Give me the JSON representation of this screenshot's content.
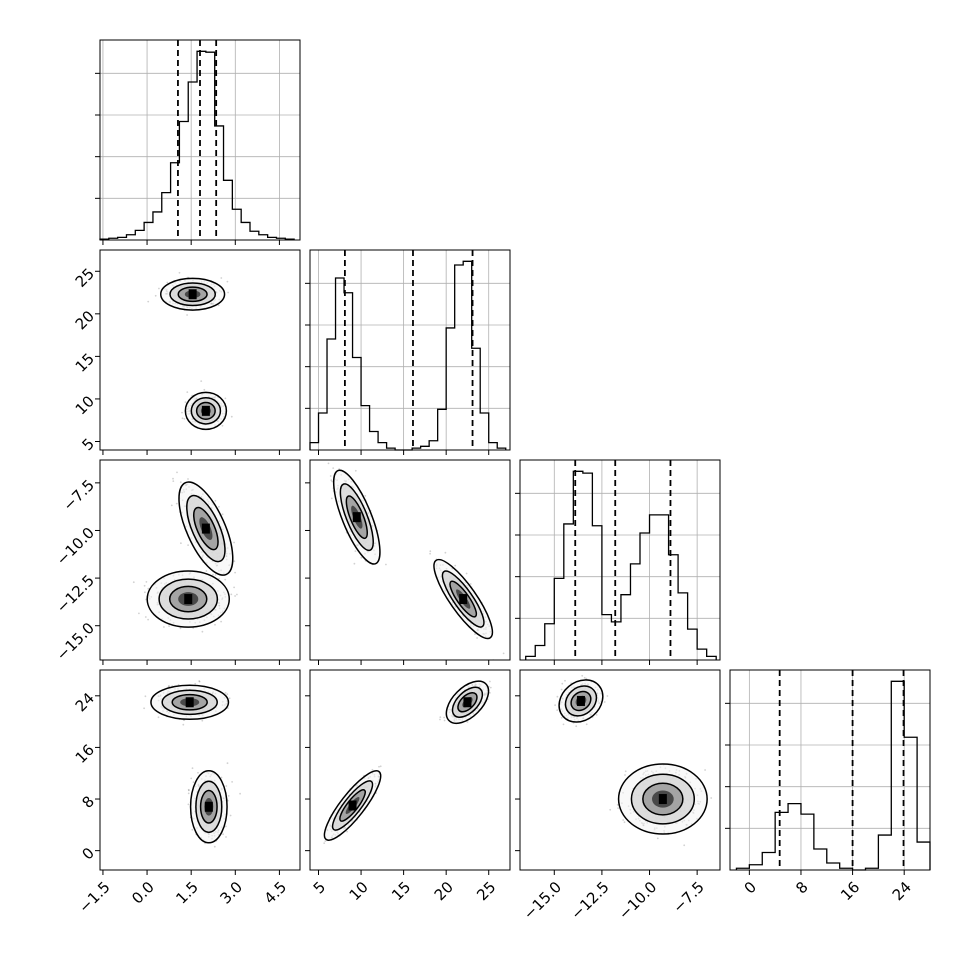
{
  "chart_data": {
    "type": "corner",
    "n_params": 4,
    "grid": true,
    "parameters": [
      {
        "range": [
          -1.6,
          5.2
        ],
        "ticks": [
          -1.5,
          0.0,
          1.5,
          3.0,
          4.5
        ],
        "tick_labels": [
          "−1.5",
          "0.0",
          "1.5",
          "3.0",
          "4.5"
        ],
        "quantiles": [
          1.05,
          1.8,
          2.35
        ]
      },
      {
        "range": [
          4.0,
          27.5
        ],
        "ticks": [
          5,
          10,
          15,
          20,
          25
        ],
        "tick_labels": [
          "5",
          "10",
          "15",
          "20",
          "25"
        ],
        "quantiles": [
          8.1,
          16.1,
          23.1
        ]
      },
      {
        "range": [
          -16.8,
          -6.3
        ],
        "ticks": [
          -15.0,
          -12.5,
          -10.0,
          -7.5
        ],
        "tick_labels": [
          "−15.0",
          "−12.5",
          "−10.0",
          "−7.5"
        ],
        "quantiles": [
          -13.9,
          -11.8,
          -8.9
        ]
      },
      {
        "range": [
          -3.0,
          28.0
        ],
        "ticks": [
          0,
          8,
          16,
          24
        ],
        "tick_labels": [
          "0",
          "8",
          "16",
          "24"
        ],
        "quantiles": [
          4.7,
          16.0,
          23.9
        ]
      }
    ],
    "histograms": [
      {
        "param": 0,
        "edges": [
          -1.6,
          -1.3,
          -1.0,
          -0.7,
          -0.4,
          -0.1,
          0.2,
          0.5,
          0.8,
          1.1,
          1.4,
          1.7,
          2.0,
          2.3,
          2.6,
          2.9,
          3.2,
          3.5,
          3.8,
          4.1,
          4.4,
          4.7,
          5.0
        ],
        "counts": [
          1,
          2,
          3,
          6,
          11,
          20,
          32,
          54,
          88,
          135,
          180,
          215,
          214,
          130,
          68,
          35,
          20,
          10,
          6,
          3,
          2,
          1
        ]
      },
      {
        "param": 1,
        "edges": [
          4.0,
          5.0,
          6.0,
          7.0,
          8.0,
          9.0,
          10.0,
          11.0,
          12.0,
          13.0,
          14.0,
          15.0,
          16.0,
          17.0,
          18.0,
          19.0,
          20.0,
          21.0,
          22.0,
          23.0,
          24.0,
          25.0,
          26.0,
          27.0
        ],
        "counts": [
          4,
          20,
          60,
          93,
          85,
          50,
          24,
          10,
          4,
          1,
          0,
          0,
          1,
          2,
          5,
          22,
          66,
          100,
          102,
          55,
          20,
          4,
          1
        ]
      },
      {
        "param": 2,
        "edges": [
          -16.5,
          -16.0,
          -15.5,
          -15.0,
          -14.5,
          -14.0,
          -13.5,
          -13.0,
          -12.5,
          -12.0,
          -11.5,
          -11.0,
          -10.5,
          -10.0,
          -9.5,
          -9.0,
          -8.5,
          -8.0,
          -7.5,
          -7.0,
          -6.5
        ],
        "counts": [
          2,
          8,
          20,
          45,
          75,
          104,
          103,
          74,
          25,
          21,
          36,
          53,
          70,
          80,
          80,
          58,
          37,
          17,
          6,
          2
        ]
      },
      {
        "param": 3,
        "edges": [
          -2.0,
          0.0,
          2.0,
          4.0,
          6.0,
          8.0,
          10.0,
          12.0,
          14.0,
          16.0,
          18.0,
          20.0,
          22.0,
          24.0,
          26.0,
          28.0
        ],
        "counts": [
          1,
          3,
          10,
          33,
          38,
          32,
          12,
          4,
          1,
          0,
          1,
          20,
          108,
          76,
          16
        ]
      }
    ],
    "joint": [
      {
        "x_param": 0,
        "y_param": 1,
        "modes": [
          {
            "center": [
              1.55,
              22.3
            ],
            "radius": [
              0.7,
              1.2
            ],
            "rotation_deg": 0
          },
          {
            "center": [
              2.0,
              8.6
            ],
            "radius": [
              0.45,
              1.4
            ],
            "rotation_deg": 0
          }
        ]
      },
      {
        "x_param": 0,
        "y_param": 2,
        "modes": [
          {
            "center": [
              2.0,
              -9.9
            ],
            "radius": [
              0.42,
              1.7
            ],
            "rotation_deg": -24
          },
          {
            "center": [
              1.4,
              -13.6
            ],
            "radius": [
              0.9,
              0.95
            ],
            "rotation_deg": 0
          }
        ]
      },
      {
        "x_param": 1,
        "y_param": 2,
        "modes": [
          {
            "center": [
              9.5,
              -9.3
            ],
            "radius": [
              1.1,
              1.7
            ],
            "rotation_deg": -22
          },
          {
            "center": [
              22.0,
              -13.6
            ],
            "radius": [
              1.0,
              1.6
            ],
            "rotation_deg": -35
          }
        ]
      },
      {
        "x_param": 0,
        "y_param": 3,
        "modes": [
          {
            "center": [
              1.45,
              23.0
            ],
            "radius": [
              0.85,
              1.7
            ],
            "rotation_deg": 0
          },
          {
            "center": [
              2.1,
              6.8
            ],
            "radius": [
              0.4,
              3.6
            ],
            "rotation_deg": 0
          }
        ]
      },
      {
        "x_param": 1,
        "y_param": 3,
        "modes": [
          {
            "center": [
              9.0,
              7.0
            ],
            "radius": [
              0.9,
              4.3
            ],
            "rotation_deg": 38
          },
          {
            "center": [
              22.5,
              23.0
            ],
            "radius": [
              1.1,
              2.6
            ],
            "rotation_deg": 45
          }
        ]
      },
      {
        "x_param": 2,
        "y_param": 3,
        "modes": [
          {
            "center": [
              -13.6,
              23.2
            ],
            "radius": [
              0.8,
              1.9
            ],
            "rotation_deg": -40
          },
          {
            "center": [
              -9.3,
              8.0
            ],
            "radius": [
              1.5,
              3.5
            ],
            "rotation_deg": 0
          }
        ]
      }
    ]
  }
}
